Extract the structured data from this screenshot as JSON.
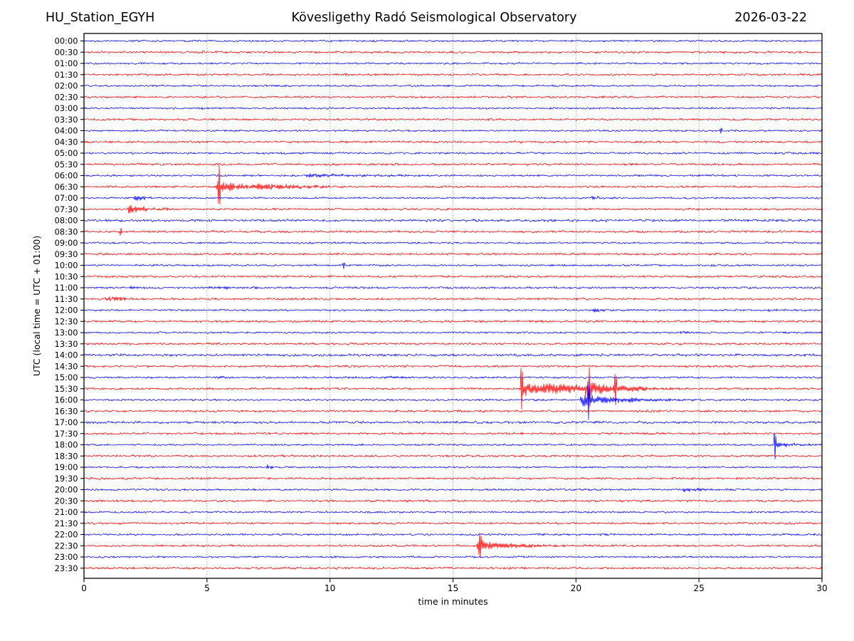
{
  "header": {
    "station": "HU_Station_EGYH",
    "observatory": "Kövesligethy Radó Seismological Observatory",
    "date": "2026-03-22"
  },
  "colors": {
    "trace_blue": "#0000ff",
    "trace_red": "#ff0000",
    "grid": "#4a4a4a",
    "axis": "#000000",
    "background": "#ffffff"
  },
  "chart_data": {
    "type": "line",
    "subtype": "helicorder-seismogram",
    "title": "Kövesligethy Radó Seismological Observatory",
    "station": "HU_Station_EGYH",
    "date": "2026-03-22",
    "xlabel": "time in minutes",
    "ylabel": "UTC (local time = UTC + 01:00)",
    "x_range": [
      0,
      30
    ],
    "x_ticks": [
      0,
      5,
      10,
      15,
      20,
      25,
      30
    ],
    "x_gridlines": [
      5,
      10,
      15,
      20,
      25
    ],
    "minutes_per_line": 30,
    "legend": "none",
    "grid": "vertical-dotted",
    "rows": [
      {
        "label": "00:00",
        "color": "#0000ff",
        "noise": 1.15
      },
      {
        "label": "00:30",
        "color": "#ff0000",
        "noise": 1.3
      },
      {
        "label": "01:00",
        "color": "#0000ff",
        "noise": 1.1
      },
      {
        "label": "01:30",
        "color": "#ff0000",
        "noise": 1.25
      },
      {
        "label": "02:00",
        "color": "#0000ff",
        "noise": 1.1
      },
      {
        "label": "02:30",
        "color": "#ff0000",
        "noise": 1.3
      },
      {
        "label": "03:00",
        "color": "#0000ff",
        "noise": 1.15
      },
      {
        "label": "03:30",
        "color": "#ff0000",
        "noise": 1.25
      },
      {
        "label": "04:00",
        "color": "#0000ff",
        "noise": 1.1,
        "spikes": [
          {
            "t": 25.9,
            "amp": 4.5
          }
        ]
      },
      {
        "label": "04:30",
        "color": "#ff0000",
        "noise": 1.3
      },
      {
        "label": "05:00",
        "color": "#0000ff",
        "noise": 1.2
      },
      {
        "label": "05:30",
        "color": "#ff0000",
        "noise": 1.35
      },
      {
        "label": "06:00",
        "color": "#0000ff",
        "noise": 1.15,
        "events": [
          {
            "t0": 9.0,
            "t1": 13.0,
            "amp": 2.2,
            "tau": 4.0
          }
        ]
      },
      {
        "label": "06:30",
        "color": "#ff0000",
        "noise": 1.25,
        "events": [
          {
            "t0": 5.35,
            "t1": 12.0,
            "amp": 9.0,
            "tau": 1.1
          },
          {
            "t0": 7.0,
            "t1": 11.0,
            "amp": 3.0,
            "tau": 2.5
          }
        ],
        "spikes": [
          {
            "t": 5.5,
            "amp": 30
          }
        ]
      },
      {
        "label": "07:00",
        "color": "#0000ff",
        "noise": 1.1,
        "events": [
          {
            "t0": 2.0,
            "t1": 2.9,
            "amp": 5.0,
            "tau": 0.3
          },
          {
            "t0": 20.6,
            "t1": 21.6,
            "amp": 2.0,
            "tau": 0.5
          }
        ]
      },
      {
        "label": "07:30",
        "color": "#ff0000",
        "noise": 1.25,
        "events": [
          {
            "t0": 1.75,
            "t1": 5.0,
            "amp": 6.0,
            "tau": 0.8
          }
        ]
      },
      {
        "label": "08:00",
        "color": "#0000ff",
        "noise": 1.5
      },
      {
        "label": "08:30",
        "color": "#ff0000",
        "noise": 1.3,
        "spikes": [
          {
            "t": 1.5,
            "amp": 5
          }
        ]
      },
      {
        "label": "09:00",
        "color": "#0000ff",
        "noise": 1.1
      },
      {
        "label": "09:30",
        "color": "#ff0000",
        "noise": 1.25
      },
      {
        "label": "10:00",
        "color": "#0000ff",
        "noise": 1.1,
        "spikes": [
          {
            "t": 10.55,
            "amp": 5
          }
        ]
      },
      {
        "label": "10:30",
        "color": "#ff0000",
        "noise": 1.3
      },
      {
        "label": "11:00",
        "color": "#0000ff",
        "noise": 1.2,
        "events": [
          {
            "t0": 1.8,
            "t1": 2.6,
            "amp": 1.8,
            "tau": 0.5
          },
          {
            "t0": 5.0,
            "t1": 7.2,
            "amp": 1.6,
            "tau": 1.5
          }
        ]
      },
      {
        "label": "11:30",
        "color": "#ff0000",
        "noise": 1.25,
        "events": [
          {
            "t0": 0.85,
            "t1": 2.3,
            "amp": 4.0,
            "tau": 0.6
          }
        ]
      },
      {
        "label": "12:00",
        "color": "#0000ff",
        "noise": 1.1,
        "events": [
          {
            "t0": 20.6,
            "t1": 22.0,
            "amp": 2.5,
            "tau": 0.8
          },
          {
            "t0": 27.7,
            "t1": 28.4,
            "amp": 2.0,
            "tau": 0.4
          }
        ]
      },
      {
        "label": "12:30",
        "color": "#ff0000",
        "noise": 1.3
      },
      {
        "label": "13:00",
        "color": "#0000ff",
        "noise": 1.1,
        "events": [
          {
            "t0": 24.2,
            "t1": 24.9,
            "amp": 2.0,
            "tau": 0.4
          }
        ]
      },
      {
        "label": "13:30",
        "color": "#ff0000",
        "noise": 1.25
      },
      {
        "label": "14:00",
        "color": "#0000ff",
        "noise": 1.5
      },
      {
        "label": "14:30",
        "color": "#ff0000",
        "noise": 1.3
      },
      {
        "label": "15:00",
        "color": "#0000ff",
        "noise": 1.2,
        "events": [
          {
            "t0": 5.3,
            "t1": 6.3,
            "amp": 2.0,
            "tau": 0.6
          },
          {
            "t0": 12.2,
            "t1": 13.5,
            "amp": 1.8,
            "tau": 0.8
          }
        ]
      },
      {
        "label": "15:30",
        "color": "#ff0000",
        "noise": 1.25,
        "events": [
          {
            "t0": 17.7,
            "t1": 20.3,
            "amp": 11.0,
            "tau": 1.0
          },
          {
            "t0": 18.6,
            "t1": 20.3,
            "amp": 5.0,
            "tau": 4.0
          },
          {
            "t0": 20.3,
            "t1": 24.8,
            "amp": 11.0,
            "tau": 1.6
          }
        ],
        "spikes": [
          {
            "t": 17.78,
            "amp": 28
          },
          {
            "t": 20.55,
            "amp": 26
          },
          {
            "t": 21.6,
            "amp": 23
          }
        ]
      },
      {
        "label": "16:00",
        "color": "#0000ff",
        "noise": 1.15,
        "events": [
          {
            "t0": 20.15,
            "t1": 25.3,
            "amp": 9.0,
            "tau": 1.6
          }
        ],
        "spikes": [
          {
            "t": 20.5,
            "amp": 25
          }
        ]
      },
      {
        "label": "16:30",
        "color": "#ff0000",
        "noise": 1.3
      },
      {
        "label": "17:00",
        "color": "#0000ff",
        "noise": 1.45
      },
      {
        "label": "17:30",
        "color": "#ff0000",
        "noise": 1.25
      },
      {
        "label": "18:00",
        "color": "#0000ff",
        "noise": 1.1,
        "events": [
          {
            "t0": 28.1,
            "t1": 30.0,
            "amp": 3.5,
            "tau": 0.9
          }
        ],
        "spikes": [
          {
            "t": 28.08,
            "amp": 22
          }
        ]
      },
      {
        "label": "18:30",
        "color": "#ff0000",
        "noise": 1.3
      },
      {
        "label": "19:00",
        "color": "#0000ff",
        "noise": 1.1,
        "events": [
          {
            "t0": 7.35,
            "t1": 7.95,
            "amp": 3.5,
            "tau": 0.25
          }
        ]
      },
      {
        "label": "19:30",
        "color": "#ff0000",
        "noise": 1.25
      },
      {
        "label": "20:00",
        "color": "#0000ff",
        "noise": 1.15,
        "events": [
          {
            "t0": 24.3,
            "t1": 26.3,
            "amp": 2.4,
            "tau": 1.2
          }
        ]
      },
      {
        "label": "20:30",
        "color": "#ff0000",
        "noise": 1.3
      },
      {
        "label": "21:00",
        "color": "#0000ff",
        "noise": 1.1
      },
      {
        "label": "21:30",
        "color": "#ff0000",
        "noise": 1.25
      },
      {
        "label": "22:00",
        "color": "#0000ff",
        "noise": 1.15
      },
      {
        "label": "22:30",
        "color": "#ff0000",
        "noise": 1.25,
        "events": [
          {
            "t0": 15.95,
            "t1": 20.8,
            "amp": 8.0,
            "tau": 1.4
          }
        ],
        "spikes": [
          {
            "t": 16.1,
            "amp": 13
          }
        ]
      },
      {
        "label": "23:00",
        "color": "#0000ff",
        "noise": 1.15
      },
      {
        "label": "23:30",
        "color": "#ff0000",
        "noise": 1.3
      }
    ]
  }
}
